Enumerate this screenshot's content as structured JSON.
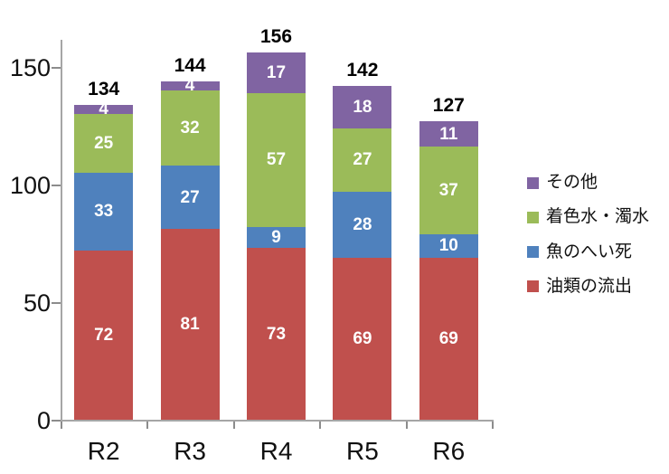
{
  "chart_data": {
    "type": "bar",
    "stacked": true,
    "title": "",
    "xlabel": "",
    "ylabel": "",
    "categories": [
      "R2",
      "R3",
      "R4",
      "R5",
      "R6"
    ],
    "series": [
      {
        "name": "油類の流出",
        "color": "#C0504D",
        "values": [
          72,
          81,
          73,
          69,
          69
        ]
      },
      {
        "name": "魚のへい死",
        "color": "#4F81BD",
        "values": [
          33,
          27,
          9,
          28,
          10
        ]
      },
      {
        "name": "着色水・濁水",
        "color": "#9BBB59",
        "values": [
          25,
          32,
          57,
          27,
          37
        ]
      },
      {
        "name": "その他",
        "color": "#8064A2",
        "values": [
          4,
          4,
          17,
          18,
          11
        ]
      }
    ],
    "totals": [
      134,
      144,
      156,
      142,
      127
    ],
    "y_ticks": [
      0,
      50,
      100,
      150
    ],
    "ylim": [
      0,
      160
    ],
    "grid": false,
    "legend_position": "right",
    "legend": [
      {
        "label": "その他",
        "color": "#8064A2"
      },
      {
        "label": "着色水・濁水",
        "color": "#9BBB59"
      },
      {
        "label": "魚のへい死",
        "color": "#4F81BD"
      },
      {
        "label": "油類の流出",
        "color": "#C0504D"
      }
    ],
    "axis_color": "#A6A6A6",
    "text_color": "#000000"
  }
}
